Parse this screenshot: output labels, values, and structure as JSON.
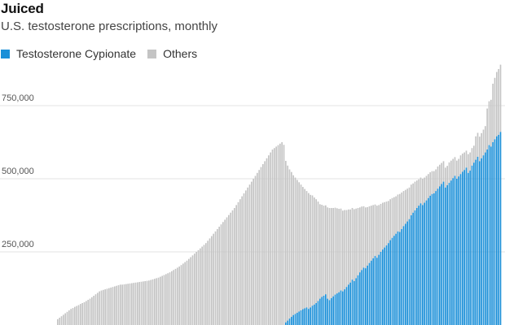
{
  "title": "Juiced",
  "subtitle": "U.S. testosterone prescriptions, monthly",
  "colors": {
    "cypionate": "#1a8fd8",
    "others": "#c4c4c4",
    "grid": "#e3e3e3",
    "axis_text": "#555555"
  },
  "chart_data": {
    "type": "bar",
    "stacked": true,
    "title": "Juiced",
    "subtitle": "U.S. testosterone prescriptions, monthly",
    "xlabel": "",
    "ylabel": "",
    "ylim": [
      0,
      900000
    ],
    "yticks": [
      250000,
      500000,
      750000
    ],
    "ytick_labels": [
      "250,000",
      "500,000",
      "750,000"
    ],
    "grid": true,
    "legend_position": "top-left",
    "series": [
      {
        "name": "Testosterone Cypionate",
        "color": "#1a8fd8",
        "values": [
          0,
          0,
          0,
          0,
          0,
          0,
          0,
          0,
          0,
          0,
          0,
          0,
          0,
          0,
          0,
          0,
          0,
          0,
          0,
          0,
          0,
          0,
          0,
          0,
          0,
          0,
          0,
          0,
          0,
          0,
          0,
          0,
          0,
          0,
          0,
          0,
          0,
          0,
          0,
          0,
          0,
          0,
          0,
          0,
          0,
          0,
          0,
          0,
          0,
          0,
          0,
          0,
          0,
          0,
          0,
          0,
          0,
          0,
          0,
          0,
          0,
          0,
          0,
          0,
          0,
          0,
          0,
          0,
          0,
          0,
          0,
          0,
          0,
          0,
          0,
          0,
          0,
          0,
          0,
          0,
          0,
          0,
          0,
          0,
          0,
          0,
          0,
          0,
          0,
          0,
          0,
          0,
          0,
          0,
          0,
          0,
          0,
          0,
          0,
          0,
          0,
          0,
          0,
          0,
          0,
          0,
          0,
          0,
          0,
          0,
          0,
          0,
          0,
          0,
          0,
          0,
          0,
          0,
          0,
          0,
          9000,
          15000,
          22000,
          28000,
          34000,
          38000,
          42000,
          46000,
          50000,
          54000,
          57000,
          60000,
          55000,
          60000,
          66000,
          70000,
          75000,
          82000,
          90000,
          96000,
          100000,
          105000,
          90000,
          85000,
          92000,
          98000,
          104000,
          108000,
          112000,
          118000,
          115000,
          122000,
          130000,
          138000,
          145000,
          155000,
          150000,
          160000,
          170000,
          180000,
          188000,
          196000,
          194000,
          203000,
          212000,
          220000,
          228000,
          236000,
          230000,
          240000,
          250000,
          258000,
          265000,
          272000,
          280000,
          290000,
          298000,
          305000,
          312000,
          320000,
          318000,
          328000,
          338000,
          346000,
          354000,
          362000,
          375000,
          384000,
          392000,
          400000,
          408000,
          416000,
          410000,
          418000,
          426000,
          434000,
          442000,
          448000,
          450000,
          458000,
          466000,
          474000,
          482000,
          490000,
          470000,
          478000,
          486000,
          494000,
          502000,
          510000,
          500000,
          508000,
          516000,
          524000,
          530000,
          538000,
          520000,
          528000,
          545000,
          555000,
          565000,
          575000,
          560000,
          570000,
          580000,
          590000,
          600000,
          615000,
          610000,
          625000,
          635000,
          645000,
          650000,
          660000
        ]
      },
      {
        "name": "Others",
        "color": "#c4c4c4",
        "values": [
          20000,
          25000,
          30000,
          35000,
          40000,
          45000,
          50000,
          55000,
          58000,
          62000,
          65000,
          68000,
          72000,
          75000,
          78000,
          82000,
          86000,
          90000,
          95000,
          100000,
          105000,
          110000,
          115000,
          118000,
          120000,
          122000,
          124000,
          126000,
          128000,
          130000,
          132000,
          134000,
          136000,
          138000,
          138000,
          139000,
          140000,
          141000,
          142000,
          143000,
          144000,
          145000,
          146000,
          147000,
          148000,
          149000,
          150000,
          151000,
          152000,
          154000,
          156000,
          158000,
          160000,
          162000,
          165000,
          168000,
          171000,
          174000,
          177000,
          180000,
          184000,
          188000,
          192000,
          196000,
          200000,
          205000,
          210000,
          215000,
          220000,
          226000,
          232000,
          238000,
          244000,
          250000,
          256000,
          262000,
          268000,
          274000,
          280000,
          288000,
          296000,
          304000,
          312000,
          320000,
          328000,
          336000,
          344000,
          352000,
          360000,
          368000,
          376000,
          384000,
          392000,
          400000,
          410000,
          420000,
          430000,
          440000,
          450000,
          460000,
          470000,
          480000,
          490000,
          500000,
          510000,
          520000,
          530000,
          540000,
          550000,
          560000,
          570000,
          580000,
          590000,
          600000,
          605000,
          610000,
          615000,
          620000,
          625000,
          616000,
          552000,
          530000,
          510000,
          495000,
          478000,
          466000,
          454000,
          442000,
          430000,
          418000,
          408000,
          398000,
          396000,
          385000,
          377000,
          366000,
          355000,
          340000,
          323000,
          315000,
          308000,
          304000,
          312000,
          315000,
          308000,
          302000,
          297000,
          291000,
          285000,
          280000,
          276000,
          271000,
          263000,
          257000,
          250000,
          245000,
          246000,
          238000,
          230000,
          222000,
          217000,
          210000,
          208000,
          200000,
          194000,
          188000,
          182000,
          176000,
          178000,
          170000,
          164000,
          160000,
          155000,
          150000,
          144000,
          140000,
          136000,
          132000,
          128000,
          126000,
          130000,
          125000,
          120000,
          116000,
          112000,
          108000,
          105000,
          100000,
          98000,
          94000,
          90000,
          88000,
          90000,
          86000,
          84000,
          82000,
          80000,
          78000,
          76000,
          74000,
          76000,
          74000,
          72000,
          70000,
          68000,
          66000,
          70000,
          68000,
          66000,
          64000,
          62000,
          60000,
          64000,
          62000,
          60000,
          58000,
          64000,
          62000,
          60000,
          58000,
          80000,
          82000,
          84000,
          86000,
          88000,
          90000,
          140000,
          150000,
          160000,
          200000,
          210000,
          220000,
          225000,
          230000,
          232000,
          235000
        ]
      }
    ]
  }
}
